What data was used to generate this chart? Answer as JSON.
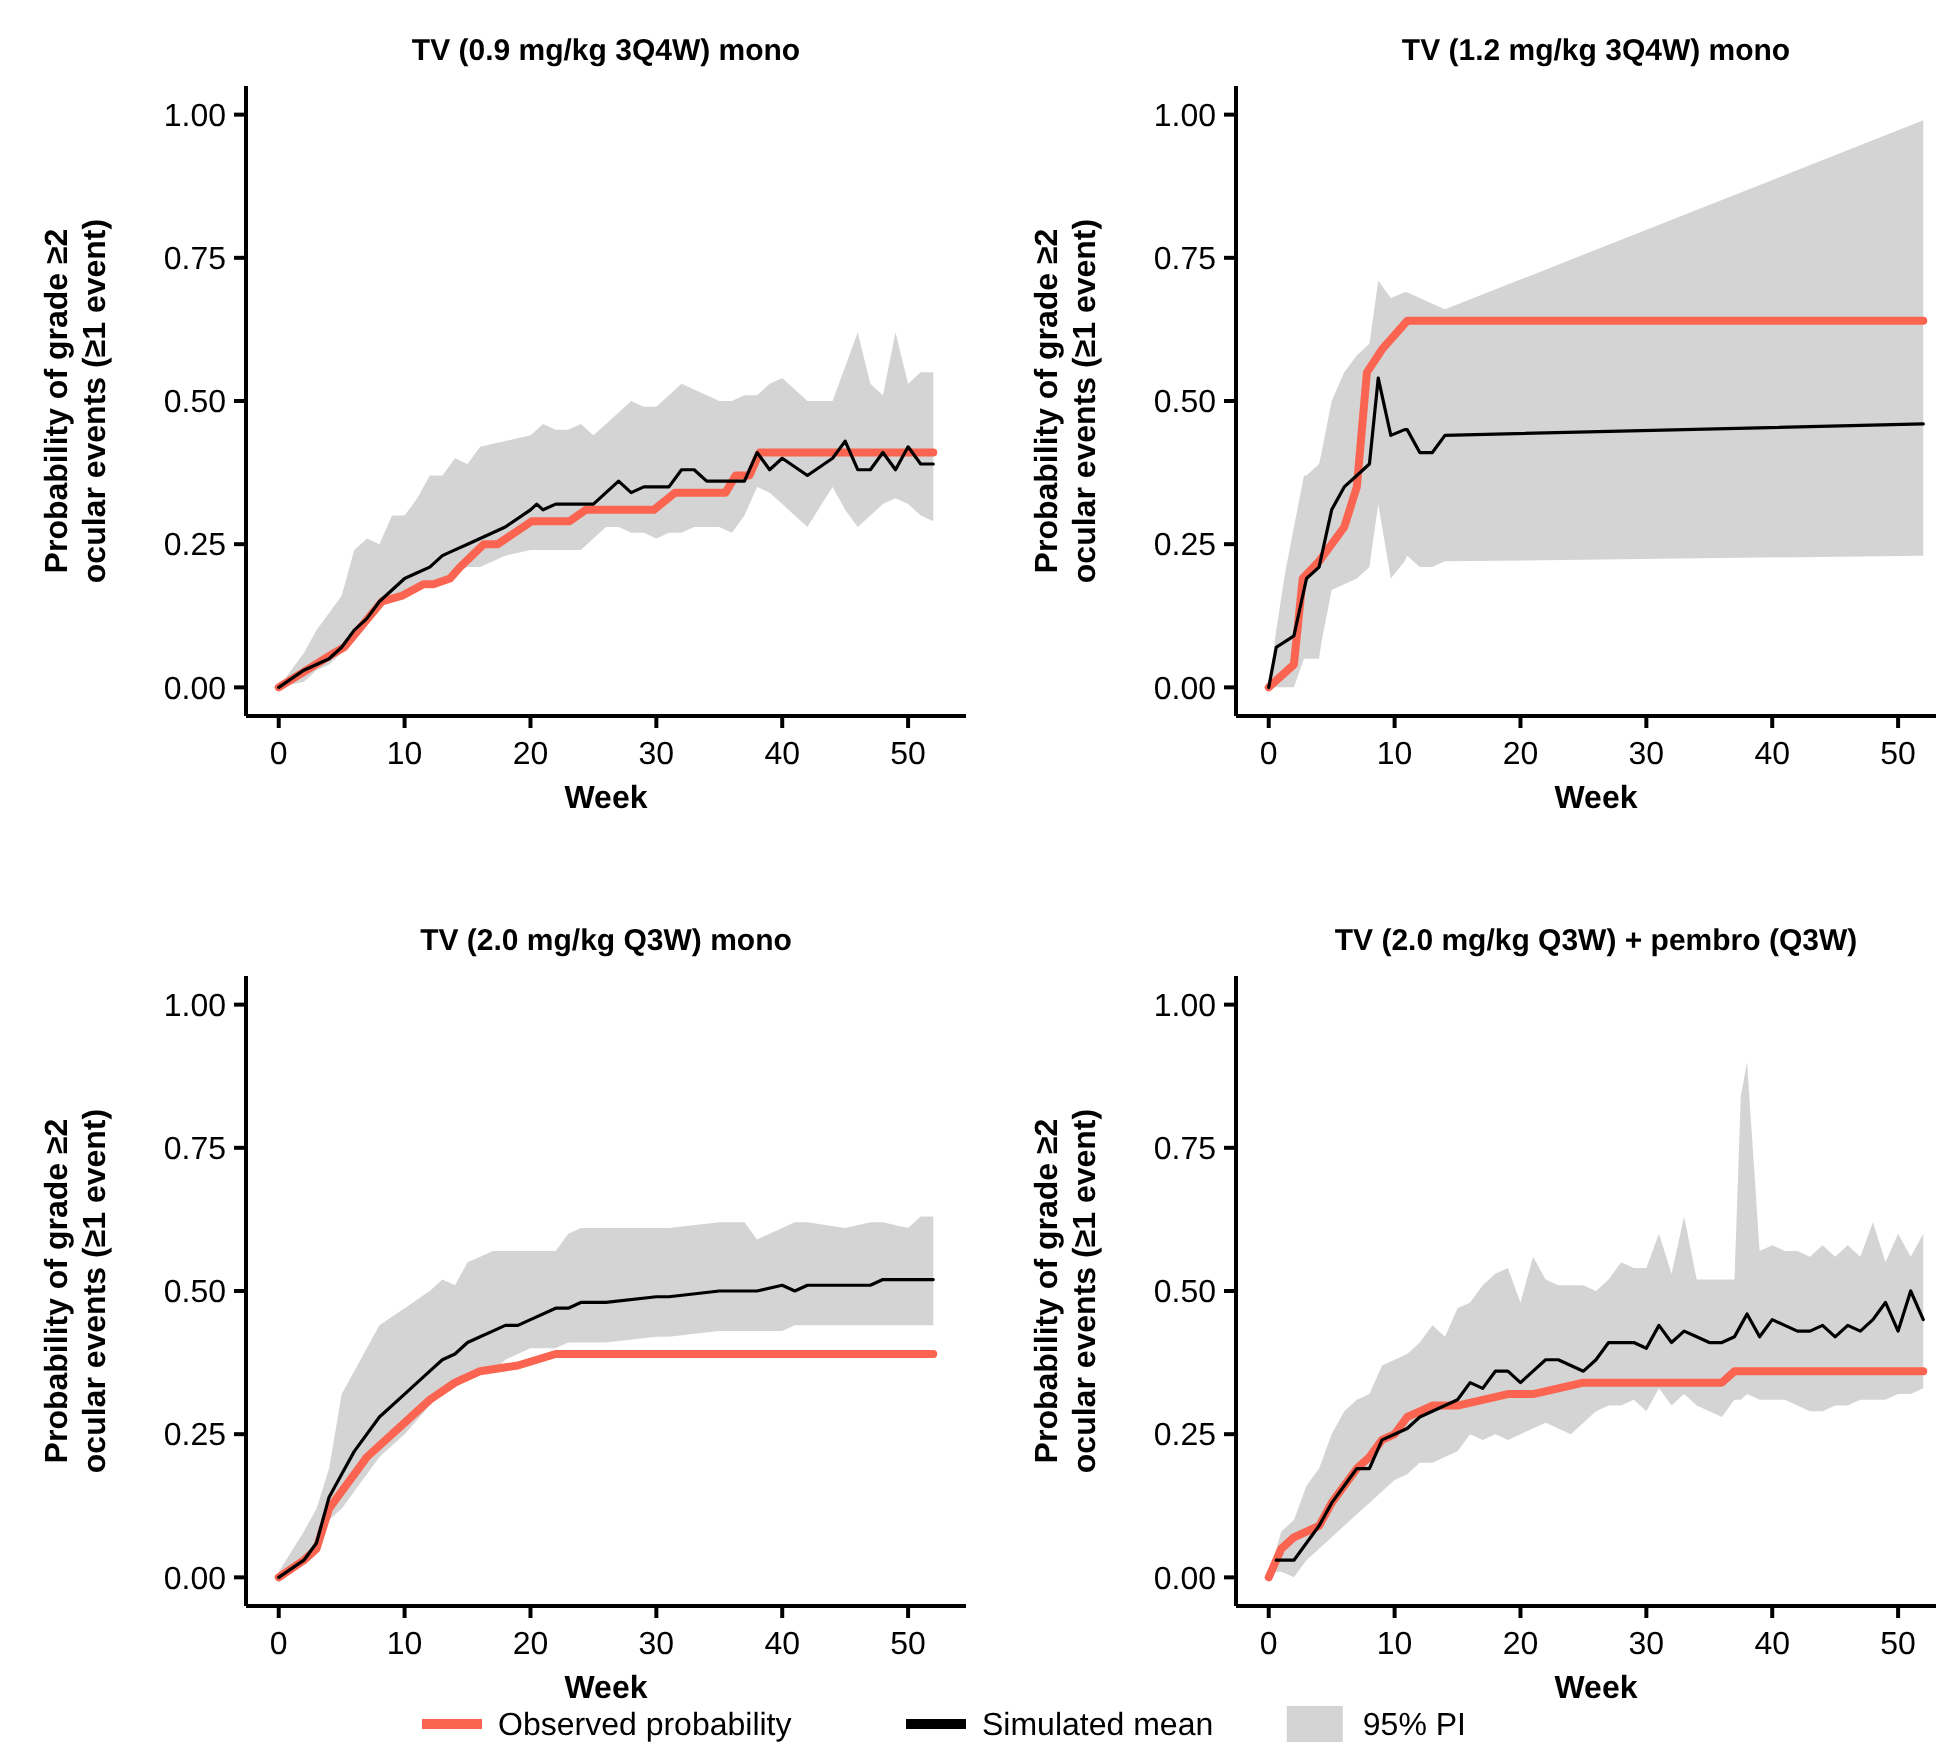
{
  "chart_data": [
    {
      "type": "line",
      "title": "TV (0.9 mg/kg 3Q4W) mono",
      "xlabel": "Week",
      "ylabel": "Probability of grade ≥2\nocular events (≥1 event)",
      "xlim": [
        -2.6,
        54.6
      ],
      "ylim": [
        -0.05,
        1.05
      ],
      "xticks": [
        0,
        10,
        20,
        30,
        40,
        50
      ],
      "yticks": [
        {
          "value": 0,
          "label": "0.00"
        },
        {
          "value": 0.25,
          "label": "0.25"
        },
        {
          "value": 0.5,
          "label": "0.50"
        },
        {
          "value": 0.75,
          "label": "0.75"
        },
        {
          "value": 1,
          "label": "1.00"
        }
      ],
      "series": [
        {
          "color": "#fa6450",
          "x": [
            0,
            4.4,
            5.2,
            8.2,
            9.8,
            11.5,
            12.3,
            13.6,
            14.4,
            16.3,
            17.4,
            20.1,
            23.1,
            24.4,
            29.8,
            31.5,
            35.5,
            36.3,
            37.4,
            38.2,
            52
          ],
          "values": [
            0,
            0.06,
            0.07,
            0.15,
            0.16,
            0.18,
            0.18,
            0.19,
            0.21,
            0.25,
            0.25,
            0.29,
            0.29,
            0.31,
            0.31,
            0.34,
            0.34,
            0.37,
            0.37,
            0.41,
            0.41
          ]
        },
        {
          "color": "#000000",
          "x": [
            0,
            2,
            3,
            4,
            5,
            6,
            7,
            8,
            9,
            10,
            11,
            12,
            13,
            14,
            15,
            16,
            18,
            20,
            20.5,
            21,
            22,
            23,
            24,
            25,
            26,
            27,
            28,
            29,
            30,
            31,
            32,
            33,
            34,
            35,
            36,
            37,
            38,
            39,
            40,
            42,
            44,
            45,
            46,
            47,
            48,
            49,
            50,
            51,
            52
          ],
          "values": [
            0,
            0.03,
            0.04,
            0.05,
            0.07,
            0.1,
            0.12,
            0.15,
            0.17,
            0.19,
            0.2,
            0.21,
            0.23,
            0.24,
            0.25,
            0.26,
            0.28,
            0.31,
            0.32,
            0.31,
            0.32,
            0.32,
            0.32,
            0.32,
            0.34,
            0.36,
            0.34,
            0.35,
            0.35,
            0.35,
            0.38,
            0.38,
            0.36,
            0.36,
            0.36,
            0.36,
            0.41,
            0.38,
            0.4,
            0.37,
            0.4,
            0.43,
            0.38,
            0.38,
            0.41,
            0.38,
            0.42,
            0.39,
            0.39
          ],
          "upper": [
            0,
            0.06,
            0.1,
            0.13,
            0.16,
            0.24,
            0.26,
            0.25,
            0.3,
            0.3,
            0.33,
            0.37,
            0.37,
            0.4,
            0.39,
            0.42,
            0.43,
            0.44,
            0.45,
            0.46,
            0.45,
            0.45,
            0.46,
            0.44,
            0.46,
            0.48,
            0.5,
            0.49,
            0.49,
            0.51,
            0.53,
            0.52,
            0.51,
            0.5,
            0.5,
            0.51,
            0.51,
            0.53,
            0.54,
            0.5,
            0.5,
            0.56,
            0.62,
            0.53,
            0.51,
            0.62,
            0.53,
            0.55,
            0.55
          ],
          "lower": [
            0,
            0.01,
            0.03,
            0.04,
            0.06,
            0.08,
            0.11,
            0.14,
            0.15,
            0.16,
            0.17,
            0.18,
            0.19,
            0.2,
            0.21,
            0.21,
            0.23,
            0.24,
            0.24,
            0.24,
            0.24,
            0.24,
            0.24,
            0.26,
            0.28,
            0.28,
            0.27,
            0.27,
            0.26,
            0.27,
            0.27,
            0.28,
            0.28,
            0.28,
            0.27,
            0.3,
            0.35,
            0.34,
            0.32,
            0.28,
            0.35,
            0.31,
            0.28,
            0.3,
            0.32,
            0.33,
            0.32,
            0.3,
            0.29
          ]
        }
      ]
    },
    {
      "type": "line",
      "title": "TV (1.2 mg/kg 3Q4W) mono",
      "xlabel": "Week",
      "ylabel": "Probability of grade ≥2\nocular events (≥1 event)",
      "xlim": [
        -2.6,
        54.6
      ],
      "ylim": [
        -0.05,
        1.05
      ],
      "xticks": [
        0,
        10,
        20,
        30,
        40,
        50
      ],
      "yticks": [
        {
          "value": 0,
          "label": "0.00"
        },
        {
          "value": 0.25,
          "label": "0.25"
        },
        {
          "value": 0.5,
          "label": "0.50"
        },
        {
          "value": 0.75,
          "label": "0.75"
        },
        {
          "value": 1,
          "label": "1.00"
        }
      ],
      "series": [
        {
          "color": "#fa6450",
          "x": [
            0,
            2,
            2.7,
            4,
            6,
            7,
            7.8,
            9,
            11,
            52
          ],
          "values": [
            0,
            0.04,
            0.19,
            0.22,
            0.28,
            0.35,
            0.55,
            0.59,
            0.64,
            0.64
          ]
        },
        {
          "color": "#000000",
          "x": [
            0,
            0.6,
            1.3,
            2,
            2.8,
            3,
            4,
            4.2,
            5,
            6,
            7,
            8,
            8.7,
            9.7,
            10.8,
            11,
            12,
            13,
            14,
            52
          ],
          "values": [
            0,
            0.07,
            0.08,
            0.09,
            0.17,
            0.19,
            0.21,
            0.23,
            0.31,
            0.35,
            0.37,
            0.39,
            0.54,
            0.44,
            0.45,
            0.45,
            0.41,
            0.41,
            0.44,
            0.46
          ],
          "upper": [
            0,
            0.1,
            0.2,
            0.28,
            0.37,
            0.37,
            0.39,
            0.41,
            0.5,
            0.55,
            0.58,
            0.6,
            0.71,
            0.68,
            0.69,
            0.69,
            0.68,
            0.67,
            0.66,
            0.99
          ],
          "lower": [
            0,
            0,
            0,
            0,
            0.05,
            0.05,
            0.05,
            0.08,
            0.17,
            0.18,
            0.19,
            0.21,
            0.32,
            0.19,
            0.22,
            0.23,
            0.21,
            0.21,
            0.22,
            0.23
          ]
        }
      ]
    },
    {
      "type": "line",
      "title": "TV (2.0 mg/kg Q3W) mono",
      "xlabel": "Week",
      "ylabel": "Probability of grade ≥2\nocular events (≥1 event)",
      "xlim": [
        -2.6,
        54.6
      ],
      "ylim": [
        -0.05,
        1.05
      ],
      "xticks": [
        0,
        10,
        20,
        30,
        40,
        50
      ],
      "yticks": [
        {
          "value": 0,
          "label": "0.00"
        },
        {
          "value": 0.25,
          "label": "0.25"
        },
        {
          "value": 0.5,
          "label": "0.50"
        },
        {
          "value": 0.75,
          "label": "0.75"
        },
        {
          "value": 1,
          "label": "1.00"
        }
      ],
      "series": [
        {
          "color": "#fa6450",
          "x": [
            0,
            2,
            3,
            4,
            5,
            6,
            7,
            8,
            10,
            12,
            14,
            16,
            19,
            20.5,
            22,
            52
          ],
          "values": [
            0,
            0.03,
            0.05,
            0.12,
            0.15,
            0.18,
            0.21,
            0.23,
            0.27,
            0.31,
            0.34,
            0.36,
            0.37,
            0.38,
            0.39,
            0.39
          ]
        },
        {
          "color": "#000000",
          "x": [
            0,
            2,
            3,
            4,
            5,
            6,
            8,
            10,
            12,
            13,
            14,
            15,
            16,
            17,
            18,
            19,
            20,
            22,
            23,
            24,
            25,
            26,
            30,
            31,
            35,
            37,
            38,
            40,
            41,
            42,
            45,
            47,
            48,
            50,
            51,
            52
          ],
          "values": [
            0,
            0.03,
            0.06,
            0.14,
            0.18,
            0.22,
            0.28,
            0.32,
            0.36,
            0.38,
            0.39,
            0.41,
            0.42,
            0.43,
            0.44,
            0.44,
            0.45,
            0.47,
            0.47,
            0.48,
            0.48,
            0.48,
            0.49,
            0.49,
            0.5,
            0.5,
            0.5,
            0.51,
            0.5,
            0.51,
            0.51,
            0.51,
            0.52,
            0.52,
            0.52,
            0.52
          ],
          "upper": [
            0.01,
            0.08,
            0.12,
            0.19,
            0.32,
            0.36,
            0.44,
            0.47,
            0.5,
            0.52,
            0.51,
            0.55,
            0.56,
            0.57,
            0.57,
            0.57,
            0.57,
            0.57,
            0.6,
            0.61,
            0.61,
            0.61,
            0.61,
            0.61,
            0.62,
            0.62,
            0.59,
            0.61,
            0.62,
            0.62,
            0.61,
            0.62,
            0.62,
            0.61,
            0.63,
            0.63
          ],
          "lower": [
            0,
            0.03,
            0.06,
            0.1,
            0.12,
            0.15,
            0.21,
            0.25,
            0.3,
            0.32,
            0.34,
            0.35,
            0.36,
            0.36,
            0.38,
            0.39,
            0.4,
            0.4,
            0.41,
            0.41,
            0.41,
            0.41,
            0.42,
            0.42,
            0.43,
            0.43,
            0.43,
            0.43,
            0.44,
            0.44,
            0.44,
            0.44,
            0.44,
            0.44,
            0.44,
            0.44
          ]
        }
      ]
    },
    {
      "type": "line",
      "title": "TV (2.0 mg/kg Q3W) + pembro (Q3W)",
      "xlabel": "Week",
      "ylabel": "Probability of grade ≥2\nocular events (≥1 event)",
      "xlim": [
        -2.6,
        54.6
      ],
      "ylim": [
        -0.05,
        1.05
      ],
      "xticks": [
        0,
        10,
        20,
        30,
        40,
        50
      ],
      "yticks": [
        {
          "value": 0,
          "label": "0.00"
        },
        {
          "value": 0.25,
          "label": "0.25"
        },
        {
          "value": 0.5,
          "label": "0.50"
        },
        {
          "value": 0.75,
          "label": "0.75"
        },
        {
          "value": 1,
          "label": "1.00"
        }
      ],
      "legend": "bottom",
      "annotations": [
        "95% PI"
      ],
      "series": [
        {
          "name": "Observed probability",
          "color": "#fa6450",
          "x": [
            0,
            1,
            2,
            4,
            5,
            6,
            7,
            8,
            9,
            10,
            11,
            12,
            13,
            15,
            17,
            19,
            21,
            23,
            25,
            36,
            37,
            52
          ],
          "values": [
            0,
            0.05,
            0.07,
            0.09,
            0.13,
            0.16,
            0.19,
            0.21,
            0.24,
            0.25,
            0.28,
            0.29,
            0.3,
            0.3,
            0.31,
            0.32,
            0.32,
            0.33,
            0.34,
            0.34,
            0.36,
            0.36
          ]
        },
        {
          "name": "Simulated mean",
          "color": "#000000",
          "x": [
            0,
            0.6,
            1,
            2,
            3,
            4,
            5,
            6,
            7,
            8,
            9,
            10,
            11,
            12,
            13,
            14,
            15,
            16,
            17,
            18,
            19,
            20,
            21,
            22,
            23,
            24,
            25,
            26,
            27,
            28,
            29,
            30,
            31,
            32,
            33,
            34,
            35,
            36,
            37,
            37.5,
            38,
            39,
            40,
            41,
            42,
            43,
            44,
            45,
            46,
            47,
            48,
            49,
            50,
            51,
            52
          ],
          "values": [
            null,
            0.03,
            0.03,
            0.03,
            0.06,
            0.09,
            0.13,
            0.16,
            0.19,
            0.19,
            0.24,
            0.25,
            0.26,
            0.28,
            0.29,
            0.3,
            0.31,
            0.34,
            0.33,
            0.36,
            0.36,
            0.34,
            0.36,
            0.38,
            0.38,
            0.37,
            0.36,
            0.38,
            0.41,
            0.41,
            0.41,
            0.4,
            0.44,
            0.41,
            0.43,
            0.42,
            0.41,
            0.41,
            0.42,
            0.44,
            0.46,
            0.42,
            0.45,
            0.44,
            0.43,
            0.43,
            0.44,
            0.42,
            0.44,
            0.43,
            0.45,
            0.48,
            0.43,
            0.5,
            0.45
          ],
          "upper": [
            0,
            0.05,
            0.08,
            0.1,
            0.16,
            0.19,
            0.25,
            0.29,
            0.31,
            0.32,
            0.37,
            0.38,
            0.39,
            0.41,
            0.44,
            0.42,
            0.47,
            0.48,
            0.51,
            0.53,
            0.54,
            0.48,
            0.56,
            0.52,
            0.51,
            0.51,
            0.51,
            0.5,
            0.52,
            0.55,
            0.54,
            0.54,
            0.6,
            0.53,
            0.63,
            0.52,
            0.52,
            0.52,
            0.52,
            0.84,
            0.9,
            0.57,
            0.58,
            0.57,
            0.57,
            0.56,
            0.58,
            0.56,
            0.58,
            0.56,
            0.62,
            0.55,
            0.6,
            0.56,
            0.6
          ],
          "lower": [
            0,
            0.01,
            0.01,
            0,
            0.03,
            0.05,
            0.07,
            0.09,
            0.11,
            0.13,
            0.15,
            0.17,
            0.18,
            0.2,
            0.2,
            0.21,
            0.22,
            0.25,
            0.24,
            0.25,
            0.24,
            0.25,
            0.26,
            0.27,
            0.26,
            0.25,
            0.27,
            0.29,
            0.3,
            0.3,
            0.31,
            0.29,
            0.33,
            0.3,
            0.32,
            0.3,
            0.29,
            0.28,
            0.31,
            0.31,
            0.32,
            0.31,
            0.31,
            0.31,
            0.3,
            0.29,
            0.29,
            0.3,
            0.3,
            0.31,
            0.31,
            0.31,
            0.32,
            0.32,
            0.33
          ]
        }
      ]
    }
  ]
}
